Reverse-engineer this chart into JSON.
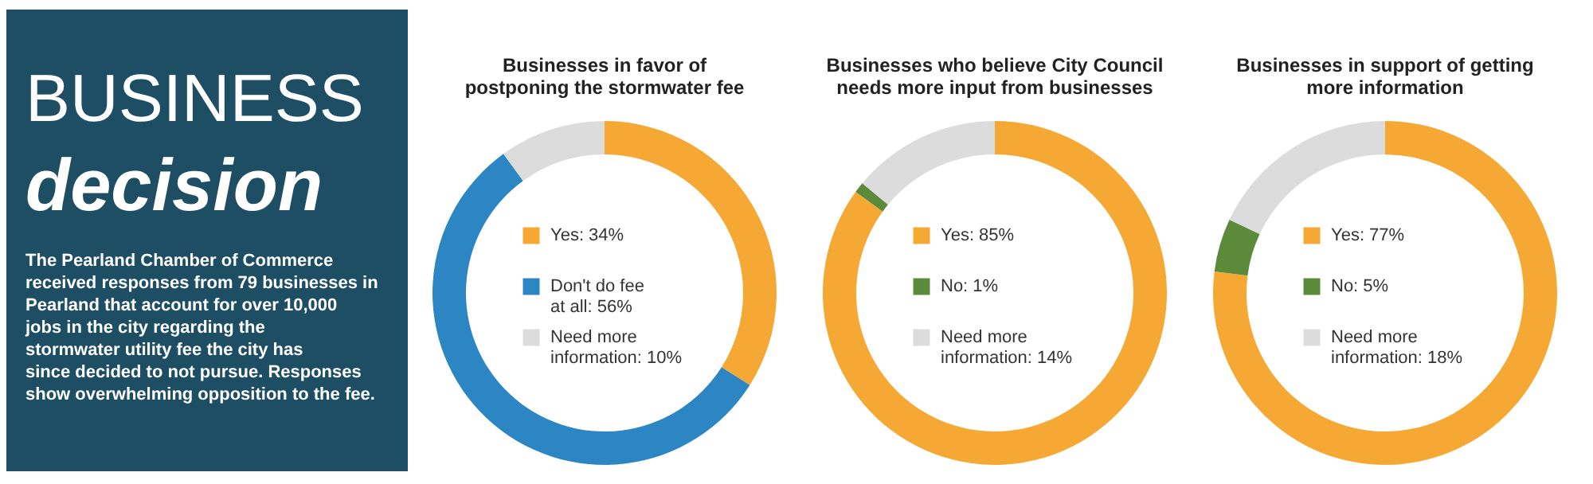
{
  "chart_data": [
    {
      "type": "other",
      "title": "BUSINESS",
      "subtitle": "decision",
      "annotations": [
        "The Pearland Chamber of Commerce received responses from 79 businesses in Pearland that account for over 10,000 jobs in the city regarding the stormwater utility fee the city has since decided to not pursue. Responses show overwhelming opposition to the fee."
      ],
      "color": "#1d4e63"
    },
    {
      "type": "donut",
      "title": "Businesses in favor of postponing the stormwater fee",
      "categories": [
        "Yes",
        "Don't do fee at all",
        "Need more information"
      ],
      "values": [
        34,
        56,
        10
      ],
      "value_labels": [
        "34%",
        "56%",
        "10%"
      ],
      "colors": [
        "#f5a833",
        "#2d86c4",
        "#dcdcdc"
      ],
      "legend": "center"
    },
    {
      "type": "donut",
      "title": "Businesses who believe City Council needs more input from businesses",
      "categories": [
        "Yes",
        "No",
        "Need more information"
      ],
      "values": [
        85,
        1,
        14
      ],
      "value_labels": [
        "85%",
        "1%",
        "14%"
      ],
      "colors": [
        "#f5a833",
        "#5b8a3a",
        "#dcdcdc"
      ],
      "legend": "center"
    },
    {
      "type": "donut",
      "title": "Businesses in support of getting more information",
      "categories": [
        "Yes",
        "No",
        "Need more information"
      ],
      "values": [
        77,
        5,
        18
      ],
      "value_labels": [
        "77%",
        "5%",
        "18%"
      ],
      "colors": [
        "#f5a833",
        "#5b8a3a",
        "#dcdcdc"
      ],
      "legend": "center"
    }
  ]
}
